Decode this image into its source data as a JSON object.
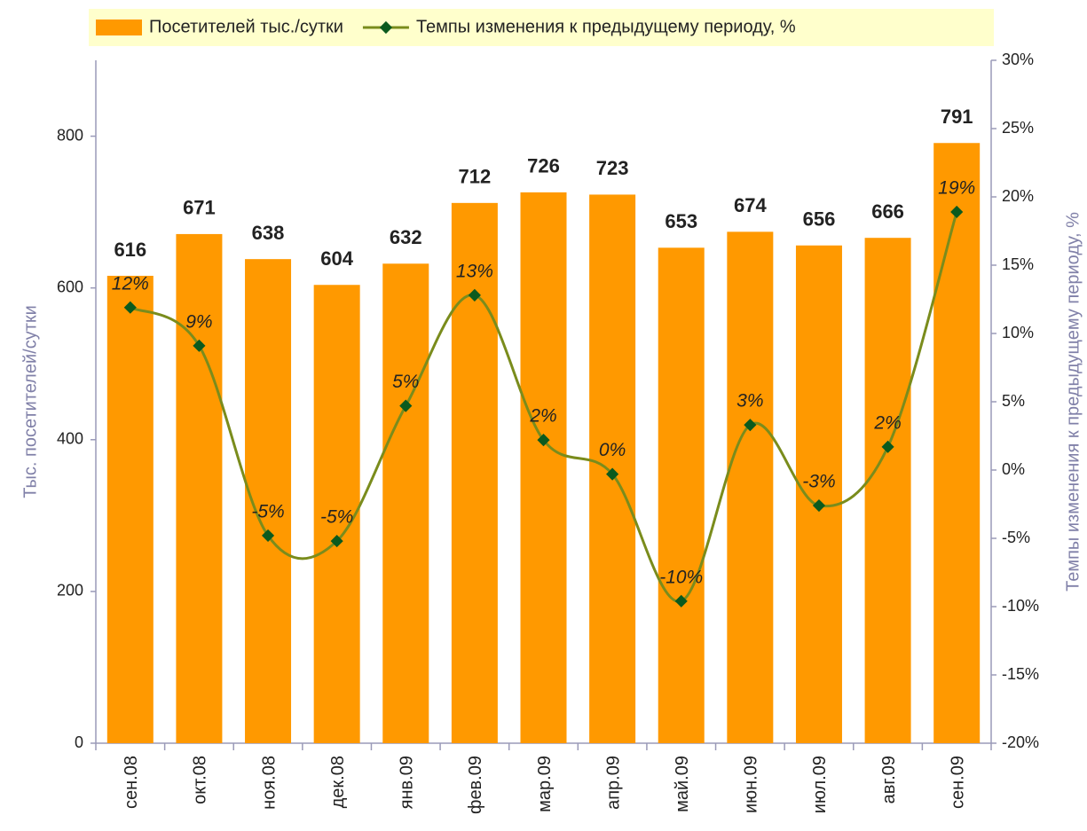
{
  "chart_data": {
    "type": "bar",
    "categories": [
      "сен.08",
      "окт.08",
      "ноя.08",
      "дек.08",
      "янв.09",
      "фев.09",
      "мар.09",
      "апр.09",
      "май.09",
      "июн.09",
      "июл.09",
      "авг.09",
      "сен.09"
    ],
    "series": [
      {
        "name": "Посетителей тыс./сутки",
        "type": "bar",
        "color": "#ff9900",
        "values": [
          616,
          671,
          638,
          604,
          632,
          712,
          726,
          723,
          653,
          674,
          656,
          666,
          791
        ]
      },
      {
        "name": "Темпы изменения к предыдущему периоду, %",
        "type": "line",
        "axis": "y2",
        "color": "#7a8c1c",
        "marker_color": "#0b5a1e",
        "values": [
          11.9,
          9.1,
          -4.8,
          -5.2,
          4.7,
          12.8,
          2.2,
          -0.3,
          -9.6,
          3.3,
          -2.6,
          1.7,
          18.9
        ],
        "value_labels": [
          "12%",
          "9%",
          "-5%",
          "-5%",
          "5%",
          "13%",
          "2%",
          "0%",
          "-10%",
          "3%",
          "-3%",
          "2%",
          "19%"
        ]
      }
    ],
    "ylabel": "Тыс. посетителей/сутки",
    "y2label": "Темпы изменения к предыдущему периоду, %",
    "ylim": [
      0,
      900
    ],
    "yticks": [
      0,
      200,
      400,
      600,
      800
    ],
    "y2lim": [
      -20,
      30
    ],
    "y2ticks": [
      {
        "value": -20,
        "label": "-20%"
      },
      {
        "value": -15,
        "label": "-15%"
      },
      {
        "value": -10,
        "label": "-10%"
      },
      {
        "value": -5,
        "label": "-5%"
      },
      {
        "value": 0,
        "label": "0%"
      },
      {
        "value": 5,
        "label": "5%"
      },
      {
        "value": 10,
        "label": "10%"
      },
      {
        "value": 15,
        "label": "15%"
      },
      {
        "value": 20,
        "label": "20%"
      },
      {
        "value": 25,
        "label": "25%"
      },
      {
        "value": 30,
        "label": "30%"
      }
    ],
    "grid": false,
    "legend": "top"
  }
}
